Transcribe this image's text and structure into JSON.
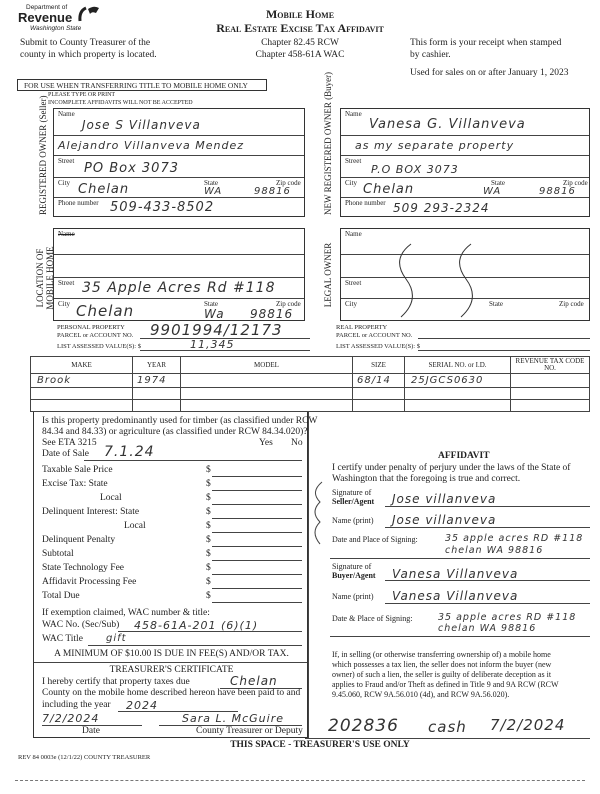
{
  "header": {
    "logo": {
      "line1": "Department of",
      "line2": "Revenue",
      "line3": "Washington State"
    },
    "title1": "Mobile Home",
    "title2": "Real Estate Excise Tax Affidavit",
    "submit": [
      "Submit to County Treasurer of the",
      "county in which property is located."
    ],
    "chapters": [
      "Chapter 82.45 RCW",
      "Chapter 458-61A WAC"
    ],
    "receipt": [
      "This form is your receipt when stamped",
      "by cashier."
    ],
    "used_for": "Used for sales on or after January 1, 2023",
    "banner": "FOR USE WHEN TRANSFERRING TITLE TO MOBILE HOME ONLY",
    "please": "PLEASE TYPE OR PRINT",
    "incomplete": "INCOMPLETE AFFIDAVITS WILL NOT BE ACCEPTED"
  },
  "labels": {
    "name": "Name",
    "street": "Street",
    "city": "City",
    "state": "State",
    "zip": "Zip code",
    "phone": "Phone number"
  },
  "seller": {
    "section": "REGISTERED OWNER (Seller)",
    "name1": "Jose S Villanveva",
    "name2": "Alejandro Villanveva Mendez",
    "street": "PO Box 3073",
    "city": "Chelan",
    "state": "WA",
    "zip": "98816",
    "phone": "509-433-8502"
  },
  "buyer": {
    "section": "NEW REGISTERED OWNER (Buyer)",
    "name1": "Vanesa G. Villanveva",
    "name2": "as my separate property",
    "street": "P.O BOX 3073",
    "city": "Chelan",
    "state": "WA",
    "zip": "98816",
    "phone": "509 293-2324"
  },
  "location": {
    "section": "LOCATION OF MOBILE HOME",
    "street": "35 Apple Acres Rd #118",
    "city": "Chelan",
    "state": "Wa",
    "zip": "98816"
  },
  "legal_owner": {
    "section": "LEGAL OWNER"
  },
  "personal_property": {
    "label1": "PERSONAL PROPERTY",
    "label2": "PARCEL or ACCOUNT NO.",
    "value": "9901994/12173",
    "assessed_label": "LIST ASSESSED VALUE(S): $",
    "assessed": "11,345"
  },
  "real_property": {
    "label1": "REAL PROPERTY",
    "label2": "PARCEL or ACCOUNT NO.",
    "assessed_label": "LIST ASSESSED VALUE(S): $"
  },
  "home_table": {
    "headers": [
      "MAKE",
      "YEAR",
      "MODEL",
      "SIZE",
      "SERIAL NO. or I.D.",
      "REVENUE TAX CODE NO."
    ],
    "rows": [
      [
        "Brook",
        "1974",
        "",
        "68/14",
        "25JGCS0630",
        ""
      ]
    ]
  },
  "tax": {
    "question": [
      "Is this property predominantly used for timber (as classified under RCW",
      "84.34 and 84.33) or agriculture (as classified under RCW 84.34.020)?"
    ],
    "see_eta": "See ETA 3215",
    "yes": "Yes",
    "no": "No",
    "date_of_sale_label": "Date of Sale",
    "date_of_sale": "7.1.24",
    "lines": [
      "Taxable Sale Price",
      "Excise Tax:   State",
      "Local",
      "Delinquent Interest:   State",
      "Local",
      "Delinquent Penalty",
      "Subtotal",
      "State Technology Fee",
      "Affidavit Processing Fee",
      "Total Due"
    ],
    "dollar": "$",
    "exemption_label": "If exemption claimed, WAC number & title:",
    "wac_no_label": "WAC No. (Sec/Sub)",
    "wac_no": "458-61A-201 (6)(1)",
    "wac_title_label": "WAC Title",
    "wac_title": "gift",
    "minimum": "A MINIMUM OF $10.00 IS DUE IN FEE(S) AND/OR TAX."
  },
  "treasurer": {
    "title": "TREASURER'S CERTIFICATE",
    "line1": "I hereby certify that property taxes due",
    "county": "Chelan",
    "line2": "County on the mobile home described hereon have been paid to and",
    "line3": "including the year",
    "year": "2024",
    "date": "7/2/2024",
    "signature": "Sara L. McGuire",
    "date_label": "Date",
    "signer_label": "County Treasurer or Deputy"
  },
  "affidavit": {
    "title": "AFFIDAVIT",
    "certify": [
      "I certify under penalty of perjury under the laws of the State of",
      "Washington that the foregoing is true and correct."
    ],
    "seller_sig_label1": "Signature of",
    "seller_sig_label2": "Seller/Agent",
    "seller_sig": "Jose villanveva",
    "seller_name_label": "Name (print)",
    "seller_name": "Jose villanveva",
    "seller_place_label": "Date and Place of Signing:",
    "seller_place1": "35 apple acres RD #118",
    "seller_place2": "chelan WA 98816",
    "buyer_sig_label1": "Signature of",
    "buyer_sig_label2": "Buyer/Agent",
    "buyer_sig": "Vanesa Villanveva",
    "buyer_name_label": "Name (print)",
    "buyer_name": "Vanesa Villanveva",
    "buyer_place_label": "Date & Place of Signing:",
    "buyer_place1": "35 apple acres RD #118",
    "buyer_place2": "chelan WA 98816",
    "warning": [
      "If, in selling (or otherwise transferring ownership of) a mobile home",
      "which possesses a tax lien, the seller does not inform the buyer (new",
      "owner) of such a lien, the seller is guilty of deliberate deception as it",
      "applies to Fraud and/or Theft as defined in Title 9 and 9A RCW (RCW",
      "9.45.060, RCW 9A.56.010 (4d), and RCW 9A.56.020)."
    ]
  },
  "receipt_stamp": {
    "number": "202836",
    "method": "cash",
    "date": "7/2/2024"
  },
  "footer": {
    "treasurer_use": "THIS SPACE - TREASURER'S USE ONLY",
    "form_id": "REV 84 0003e (12/1/22) COUNTY TREASURER"
  }
}
